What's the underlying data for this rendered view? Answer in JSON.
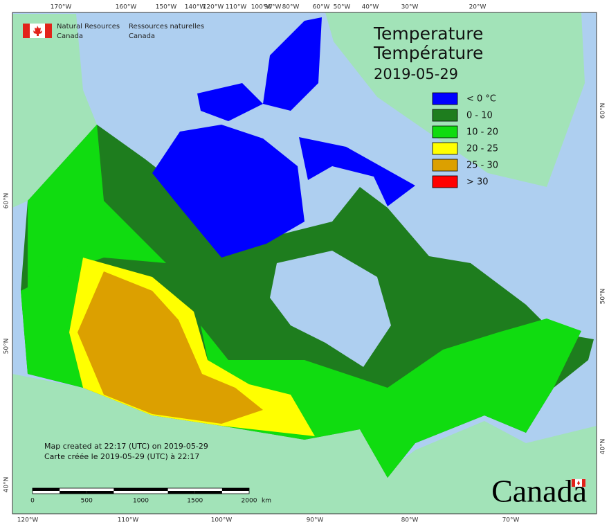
{
  "agency": {
    "en": [
      "Natural Resources",
      "Canada"
    ],
    "fr": [
      "Ressources naturelles",
      "Canada"
    ]
  },
  "title": [
    "Temperature",
    "Température"
  ],
  "date": "2019-05-29",
  "legend": [
    {
      "label": "< 0 °C",
      "color": "#0000ff"
    },
    {
      "label": "0 - 10",
      "color": "#1e7d1e"
    },
    {
      "label": "10 - 20",
      "color": "#10dc10"
    },
    {
      "label": "20 - 25",
      "color": "#ffff00"
    },
    {
      "label": "25 - 30",
      "color": "#dca000"
    },
    {
      "label": "> 30",
      "color": "#ff0000"
    }
  ],
  "grid_labels": {
    "top": [
      "170°W",
      "160°W",
      "150°W",
      "140°W",
      "120°W",
      "110°W",
      "100°W",
      "90°W",
      "80°W",
      "60°W",
      "50°W",
      "40°W",
      "30°W",
      "20°W"
    ],
    "bottom": [
      "120°W",
      "110°W",
      "100°W",
      "90°W",
      "80°W",
      "70°W"
    ],
    "left": [
      "60°N",
      "50°N",
      "40°N"
    ],
    "right": [
      "60°N",
      "50°N",
      "40°N"
    ]
  },
  "credits": [
    "Map created at 22:17 (UTC) on 2019-05-29",
    "Carte créée le 2019-05-29 (UTC) à 22:17"
  ],
  "scale": {
    "ticks": [
      0,
      500,
      1000,
      1500,
      2000
    ],
    "unit": "km"
  },
  "wordmark": "Canada"
}
